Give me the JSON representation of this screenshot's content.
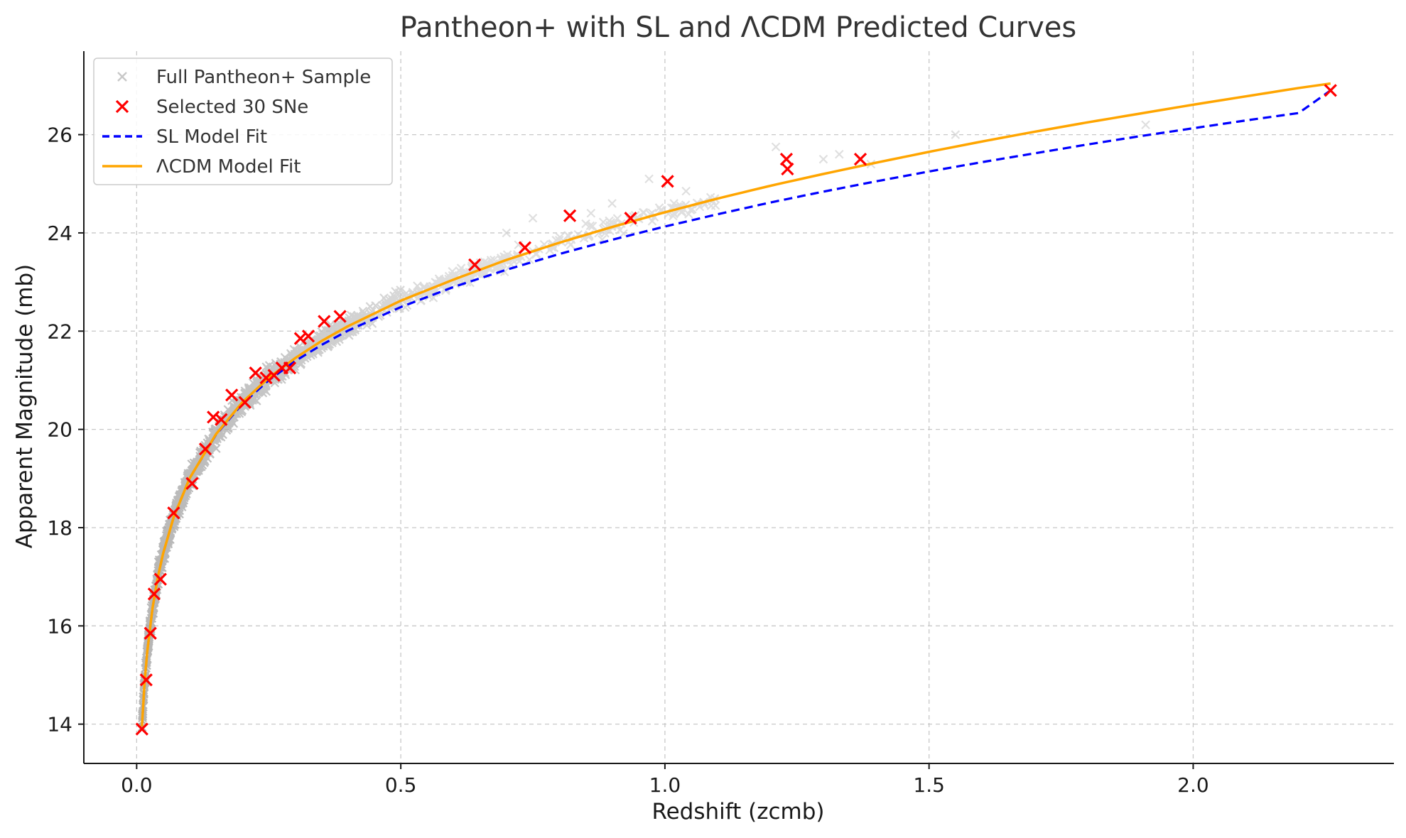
{
  "chart_data": {
    "type": "scatter",
    "title": "Pantheon+ with SL and ΛCDM Predicted Curves",
    "xlabel": "Redshift (zcmb)",
    "ylabel": "Apparent Magnitude (mb)",
    "xlim": [
      -0.1,
      2.38
    ],
    "ylim": [
      13.2,
      27.7
    ],
    "xticks": [
      0.0,
      0.5,
      1.0,
      1.5,
      2.0
    ],
    "xtick_labels": [
      "0.0",
      "0.5",
      "1.0",
      "1.5",
      "2.0"
    ],
    "yticks": [
      14,
      16,
      18,
      20,
      22,
      24,
      26
    ],
    "ytick_labels": [
      "14",
      "16",
      "18",
      "20",
      "22",
      "24",
      "26"
    ],
    "grid": true,
    "legend_position": "top-left",
    "legend": [
      {
        "label": "Full Pantheon+ Sample",
        "marker": "x",
        "color": "#c8c8c8"
      },
      {
        "label": "Selected 30 SNe",
        "marker": "x",
        "color": "#ff0000"
      },
      {
        "label": "SL Model Fit",
        "line": "dashed",
        "color": "#0000ff"
      },
      {
        "label": "ΛCDM Model Fit",
        "line": "solid",
        "color": "#ffa500"
      }
    ],
    "full_sample": {
      "name": "Full Pantheon+ Sample",
      "color": "#c0c0c0",
      "description_count": "approx. 1700 SNe (dense, generated from model + scatter)",
      "extra_points": [
        {
          "x": 1.21,
          "y": 25.75
        },
        {
          "x": 1.3,
          "y": 25.5
        },
        {
          "x": 1.33,
          "y": 25.6
        },
        {
          "x": 1.39,
          "y": 25.4
        },
        {
          "x": 1.55,
          "y": 26.0
        },
        {
          "x": 1.91,
          "y": 26.2
        },
        {
          "x": 1.09,
          "y": 24.65
        },
        {
          "x": 0.97,
          "y": 25.1
        },
        {
          "x": 1.04,
          "y": 24.85
        },
        {
          "x": 0.8,
          "y": 23.85
        },
        {
          "x": 0.86,
          "y": 24.4
        },
        {
          "x": 0.63,
          "y": 23.2
        },
        {
          "x": 0.7,
          "y": 24.0
        },
        {
          "x": 0.75,
          "y": 24.3
        },
        {
          "x": 0.9,
          "y": 24.6
        }
      ]
    },
    "selected_sne": {
      "name": "Selected 30 SNe",
      "color": "#ff0000",
      "points": [
        {
          "x": 0.01,
          "y": 13.9
        },
        {
          "x": 0.018,
          "y": 14.9
        },
        {
          "x": 0.026,
          "y": 15.85
        },
        {
          "x": 0.033,
          "y": 16.65
        },
        {
          "x": 0.045,
          "y": 16.95
        },
        {
          "x": 0.07,
          "y": 18.3
        },
        {
          "x": 0.105,
          "y": 18.9
        },
        {
          "x": 0.13,
          "y": 19.6
        },
        {
          "x": 0.145,
          "y": 20.25
        },
        {
          "x": 0.16,
          "y": 20.2
        },
        {
          "x": 0.18,
          "y": 20.7
        },
        {
          "x": 0.205,
          "y": 20.55
        },
        {
          "x": 0.225,
          "y": 21.15
        },
        {
          "x": 0.245,
          "y": 21.05
        },
        {
          "x": 0.26,
          "y": 21.1
        },
        {
          "x": 0.275,
          "y": 21.25
        },
        {
          "x": 0.29,
          "y": 21.25
        },
        {
          "x": 0.31,
          "y": 21.85
        },
        {
          "x": 0.325,
          "y": 21.9
        },
        {
          "x": 0.355,
          "y": 22.2
        },
        {
          "x": 0.385,
          "y": 22.3
        },
        {
          "x": 0.64,
          "y": 23.35
        },
        {
          "x": 0.735,
          "y": 23.7
        },
        {
          "x": 0.82,
          "y": 24.35
        },
        {
          "x": 0.935,
          "y": 24.3
        },
        {
          "x": 1.005,
          "y": 25.05
        },
        {
          "x": 1.23,
          "y": 25.5
        },
        {
          "x": 1.232,
          "y": 25.3
        },
        {
          "x": 1.37,
          "y": 25.5
        },
        {
          "x": 2.26,
          "y": 26.9
        }
      ]
    },
    "series": [
      {
        "name": "SL Model Fit",
        "color": "#0000ff",
        "style": "dashed",
        "x": [
          0.01,
          0.015,
          0.02,
          0.03,
          0.04,
          0.05,
          0.07,
          0.1,
          0.15,
          0.2,
          0.25,
          0.3,
          0.35,
          0.4,
          0.5,
          0.6,
          0.7,
          0.8,
          0.9,
          1.0,
          1.1,
          1.2,
          1.3,
          1.4,
          1.5,
          1.6,
          1.7,
          1.8,
          1.9,
          2.0,
          2.1,
          2.2,
          2.26
        ],
        "y": [
          13.95,
          14.85,
          15.47,
          16.36,
          16.99,
          17.47,
          18.21,
          19.0,
          19.89,
          20.52,
          21.0,
          21.39,
          21.72,
          22.01,
          22.49,
          22.9,
          23.25,
          23.57,
          23.86,
          24.13,
          24.38,
          24.62,
          24.84,
          25.05,
          25.25,
          25.44,
          25.62,
          25.8,
          25.97,
          26.13,
          26.29,
          26.44,
          26.9
        ]
      },
      {
        "name": "ΛCDM Model Fit",
        "color": "#ffa500",
        "style": "solid",
        "x": [
          0.01,
          0.015,
          0.02,
          0.03,
          0.04,
          0.05,
          0.07,
          0.1,
          0.15,
          0.2,
          0.25,
          0.3,
          0.35,
          0.4,
          0.5,
          0.6,
          0.7,
          0.8,
          0.9,
          1.0,
          1.1,
          1.2,
          1.3,
          1.4,
          1.5,
          1.6,
          1.7,
          1.8,
          1.9,
          2.0,
          2.1,
          2.2,
          2.26
        ],
        "y": [
          13.95,
          14.85,
          15.47,
          16.36,
          16.99,
          17.47,
          18.21,
          19.0,
          19.9,
          20.55,
          21.05,
          21.45,
          21.8,
          22.1,
          22.62,
          23.05,
          23.45,
          23.8,
          24.12,
          24.42,
          24.7,
          24.96,
          25.2,
          25.43,
          25.65,
          25.86,
          26.06,
          26.25,
          26.43,
          26.61,
          26.78,
          26.95,
          27.04
        ]
      }
    ]
  }
}
